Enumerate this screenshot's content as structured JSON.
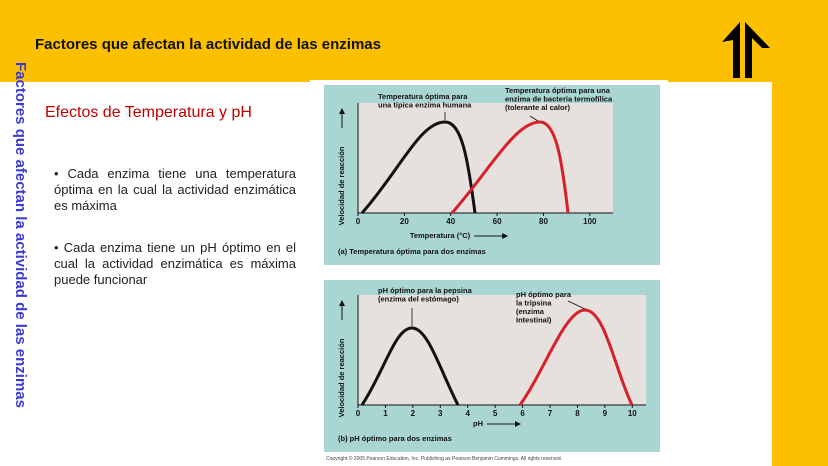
{
  "header": {
    "title": "Factores que afectan la actividad de las enzimas"
  },
  "side_title": "Factores que afectan la actividad de las enzimas",
  "subtitle": "Efectos de Temperatura y pH",
  "bullets": [
    "• Cada enzima tiene una temperatura óptima en la cual la actividad enzimática es máxima",
    "• Cada enzima tiene un pH óptimo en el cual  la actividad enzimática es máxima  puede funcionar"
  ],
  "figures": [
    {
      "annotations": [
        [
          "Temperatura óptima para",
          "una típica enzima humana"
        ],
        [
          "Temperatura óptima para una",
          "enzima de bacteria termofílica",
          "(tolerante al calor)"
        ]
      ],
      "y_label": "Velocidad de reacción",
      "x_label": "Temperatura (°C)",
      "caption": "(a) Temperatura óptima para dos enzimas",
      "xlim": [
        0,
        110
      ],
      "xticks": [
        0,
        20,
        40,
        60,
        80,
        100
      ]
    },
    {
      "annotations": [
        [
          "pH óptimo para la pepsina",
          "(enzima del estómago)"
        ],
        [
          "pH óptimo  para",
          "la tripsina",
          "(enzima",
          "Intestinal)"
        ]
      ],
      "y_label": "Velocidad de reacción",
      "x_label": "pH",
      "caption": "(b) pH óptimo para dos enzimas",
      "xlim": [
        0,
        10.5
      ],
      "xticks": [
        0,
        1,
        2,
        3,
        4,
        5,
        6,
        7,
        8,
        9,
        10
      ]
    }
  ],
  "copyright": "Copyright © 2005 Pearson Education, Inc. Publishing as Pearson Benjamin Cummings. All rights reserved."
}
